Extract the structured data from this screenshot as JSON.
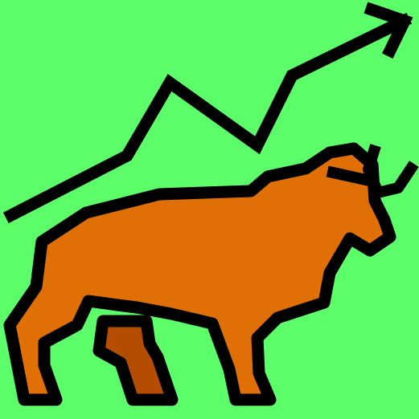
{
  "illustration": {
    "subject": "bull-market-icon",
    "elements": [
      "trend-arrow-icon",
      "bull-icon"
    ],
    "colors": {
      "background": "#5cff6a",
      "outline": "#000000",
      "bull_body": "#e06f06",
      "bull_far_leg": "#b54d00"
    }
  }
}
